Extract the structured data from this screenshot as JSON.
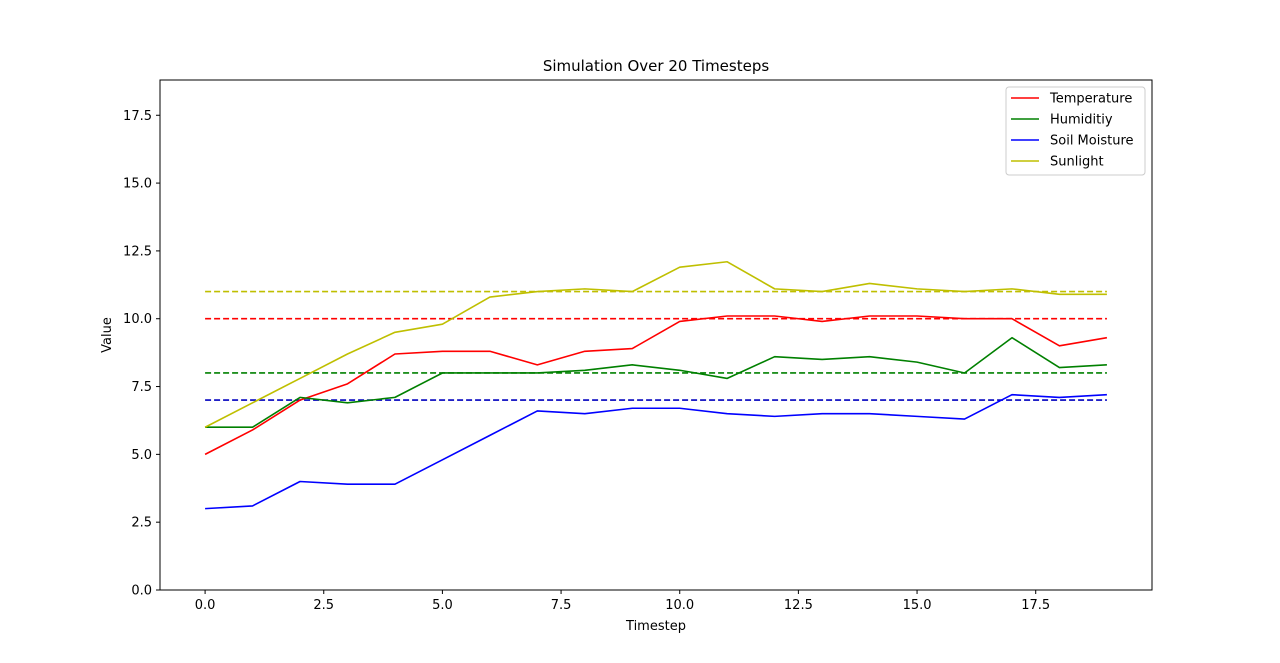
{
  "chart_data": {
    "type": "line",
    "title": "Simulation Over 20 Timesteps",
    "xlabel": "Timestep",
    "ylabel": "Value",
    "xlim": [
      -0.95,
      19.95
    ],
    "ylim": [
      0,
      18.8
    ],
    "xticks": [
      0.0,
      2.5,
      5.0,
      7.5,
      10.0,
      12.5,
      15.0,
      17.5
    ],
    "xtick_labels": [
      "0.0",
      "2.5",
      "5.0",
      "7.5",
      "10.0",
      "12.5",
      "15.0",
      "17.5"
    ],
    "yticks": [
      0.0,
      2.5,
      5.0,
      7.5,
      10.0,
      12.5,
      15.0,
      17.5
    ],
    "ytick_labels": [
      "0.0",
      "2.5",
      "5.0",
      "7.5",
      "10.0",
      "12.5",
      "15.0",
      "17.5"
    ],
    "grid": false,
    "legend_position": "top-right",
    "x": [
      0,
      1,
      2,
      3,
      4,
      5,
      6,
      7,
      8,
      9,
      10,
      11,
      12,
      13,
      14,
      15,
      16,
      17,
      18,
      19
    ],
    "series": [
      {
        "name": "Temperature",
        "color": "#ff0000",
        "values": [
          5.0,
          5.9,
          7.0,
          7.6,
          8.7,
          8.8,
          8.8,
          8.3,
          8.8,
          8.9,
          9.9,
          10.1,
          10.1,
          9.9,
          10.1,
          10.1,
          10.0,
          10.0,
          9.0,
          9.3
        ]
      },
      {
        "name": "Humiditiy",
        "color": "#008000",
        "values": [
          6.0,
          6.0,
          7.1,
          6.9,
          7.1,
          8.0,
          8.0,
          8.0,
          8.1,
          8.3,
          8.1,
          7.8,
          8.6,
          8.5,
          8.6,
          8.4,
          8.0,
          9.3,
          8.2,
          8.3
        ]
      },
      {
        "name": "Soil Moisture",
        "color": "#0000ff",
        "values": [
          3.0,
          3.1,
          4.0,
          3.9,
          3.9,
          4.8,
          5.7,
          6.6,
          6.5,
          6.7,
          6.7,
          6.5,
          6.4,
          6.5,
          6.5,
          6.4,
          6.3,
          7.2,
          7.1,
          7.2
        ]
      },
      {
        "name": "Sunlight",
        "color": "#bfbf00",
        "values": [
          6.0,
          6.9,
          7.8,
          8.7,
          9.5,
          9.8,
          10.8,
          11.0,
          11.1,
          11.0,
          11.9,
          12.1,
          11.1,
          11.0,
          11.3,
          11.1,
          11.0,
          11.1,
          10.9,
          10.9
        ]
      }
    ],
    "reference_lines": [
      {
        "y": 10,
        "color": "#ff0000"
      },
      {
        "y": 8,
        "color": "#008000"
      },
      {
        "y": 7,
        "color": "#0000bf"
      },
      {
        "y": 11,
        "color": "#bfbf00"
      }
    ]
  }
}
